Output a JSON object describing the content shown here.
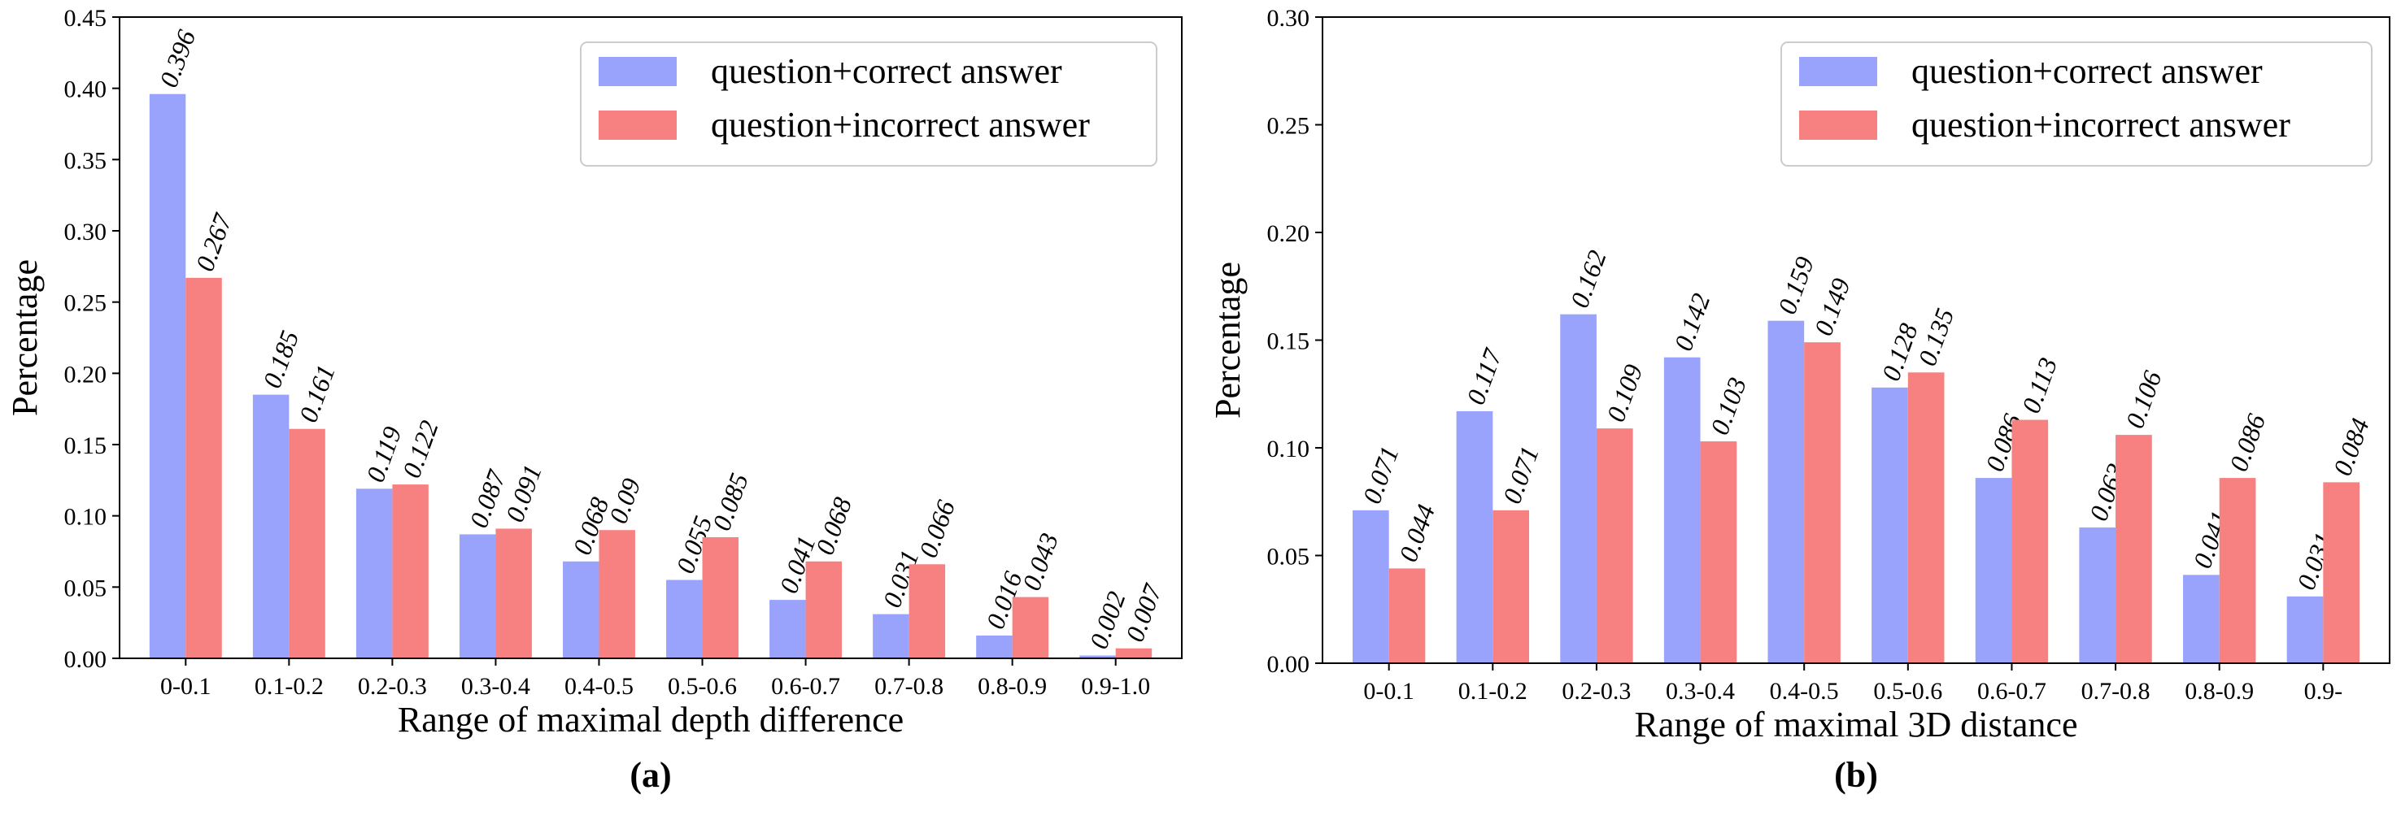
{
  "colors": {
    "correct": "#99a3fb",
    "incorrect": "#f78080"
  },
  "chart_data": [
    {
      "type": "bar",
      "panel_label": "(a)",
      "xlabel": "Range of maximal depth difference",
      "ylabel": "Percentage",
      "ylim": [
        0,
        0.45
      ],
      "yticks": [
        "0.00",
        "0.05",
        "0.10",
        "0.15",
        "0.20",
        "0.25",
        "0.30",
        "0.35",
        "0.40",
        "0.45"
      ],
      "categories": [
        "0-0.1",
        "0.1-0.2",
        "0.2-0.3",
        "0.3-0.4",
        "0.4-0.5",
        "0.5-0.6",
        "0.6-0.7",
        "0.7-0.8",
        "0.8-0.9",
        "0.9-1.0"
      ],
      "legend_position": "top-right",
      "series": [
        {
          "name": "question+correct answer",
          "values": [
            0.396,
            0.185,
            0.119,
            0.087,
            0.068,
            0.055,
            0.041,
            0.031,
            0.016,
            0.002
          ],
          "labels": [
            "0.396",
            "0.185",
            "0.119",
            "0.087",
            "0.068",
            "0.055",
            "0.041",
            "0.031",
            "0.016",
            "0.002"
          ]
        },
        {
          "name": "question+incorrect answer",
          "values": [
            0.267,
            0.161,
            0.122,
            0.091,
            0.09,
            0.085,
            0.068,
            0.066,
            0.043,
            0.007
          ],
          "labels": [
            "0.267",
            "0.161",
            "0.122",
            "0.091",
            "0.09",
            "0.085",
            "0.068",
            "0.066",
            "0.043",
            "0.007"
          ]
        }
      ]
    },
    {
      "type": "bar",
      "panel_label": "(b)",
      "xlabel": "Range of maximal 3D distance",
      "ylabel": "Percentage",
      "ylim": [
        0,
        0.3
      ],
      "yticks": [
        "0.00",
        "0.05",
        "0.10",
        "0.15",
        "0.20",
        "0.25",
        "0.30"
      ],
      "categories": [
        "0-0.1",
        "0.1-0.2",
        "0.2-0.3",
        "0.3-0.4",
        "0.4-0.5",
        "0.5-0.6",
        "0.6-0.7",
        "0.7-0.8",
        "0.8-0.9",
        "0.9-"
      ],
      "legend_position": "top-right",
      "series": [
        {
          "name": "question+correct answer",
          "values": [
            0.071,
            0.117,
            0.162,
            0.142,
            0.159,
            0.128,
            0.086,
            0.063,
            0.041,
            0.031
          ],
          "labels": [
            "0.071",
            "0.117",
            "0.162",
            "0.142",
            "0.159",
            "0.128",
            "0.086",
            "0.063",
            "0.041",
            "0.031"
          ]
        },
        {
          "name": "question+incorrect answer",
          "values": [
            0.044,
            0.071,
            0.109,
            0.103,
            0.149,
            0.135,
            0.113,
            0.106,
            0.086,
            0.084
          ],
          "labels": [
            "0.044",
            "0.071",
            "0.109",
            "0.103",
            "0.149",
            "0.135",
            "0.113",
            "0.106",
            "0.086",
            "0.084"
          ]
        }
      ]
    }
  ]
}
